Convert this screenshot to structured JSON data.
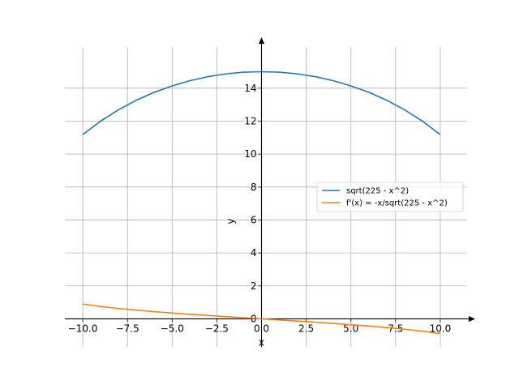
{
  "chart_data": {
    "type": "line",
    "xlabel": "x",
    "ylabel": "y",
    "xlim": [
      -11.0,
      11.5
    ],
    "ylim": [
      -1.7,
      16.5
    ],
    "grid": true,
    "legend_position": "center-right",
    "x_ticks": [
      -10.0,
      -7.5,
      -5.0,
      -2.5,
      0.0,
      2.5,
      5.0,
      7.5,
      10.0
    ],
    "x_tick_labels": [
      "−10.0",
      "−7.5",
      "−5.0",
      "−2.5",
      "0.0",
      "2.5",
      "5.0",
      "7.5",
      "10.0"
    ],
    "y_ticks": [
      0,
      2,
      4,
      6,
      8,
      10,
      12,
      14
    ],
    "y_tick_labels": [
      "0",
      "2",
      "4",
      "6",
      "8",
      "10",
      "12",
      "14"
    ],
    "x": [
      -10,
      -9,
      -8,
      -7,
      -6,
      -5,
      -4,
      -3,
      -2,
      -1,
      0,
      1,
      2,
      3,
      4,
      5,
      6,
      7,
      8,
      9,
      10
    ],
    "series": [
      {
        "name": "sqrt(225 - x^2)",
        "color": "#1f77b4",
        "values": [
          11.18,
          12.0,
          12.69,
          13.27,
          13.75,
          14.14,
          14.46,
          14.7,
          14.87,
          14.97,
          15.0,
          14.97,
          14.87,
          14.7,
          14.46,
          14.14,
          13.75,
          13.27,
          12.69,
          12.0,
          11.18
        ]
      },
      {
        "name": "f'(x) = -x/sqrt(225 - x^2)",
        "color": "#ff7f0e",
        "values": [
          0.894,
          0.75,
          0.63,
          0.528,
          0.436,
          0.354,
          0.277,
          0.204,
          0.134,
          0.067,
          0.0,
          -0.067,
          -0.134,
          -0.204,
          -0.277,
          -0.354,
          -0.436,
          -0.528,
          -0.63,
          -0.75,
          -0.894
        ]
      }
    ]
  }
}
